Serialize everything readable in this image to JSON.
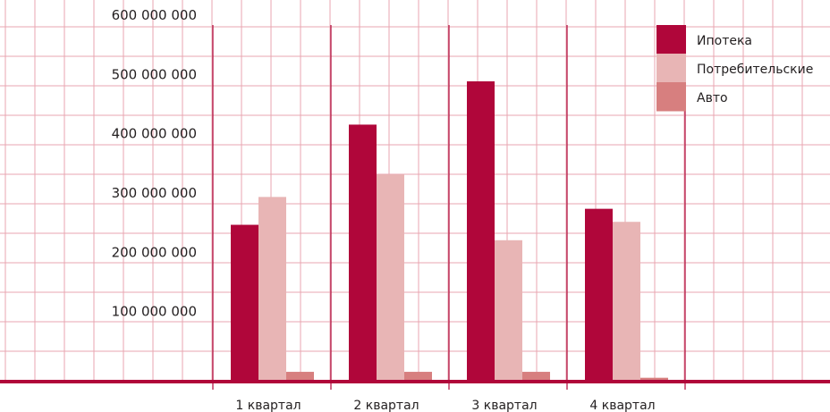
{
  "chart_data": {
    "type": "bar",
    "categories": [
      "1 квартал",
      "2 квартал",
      "3 квартал",
      "4 квартал"
    ],
    "series": [
      {
        "name": "Ипотека",
        "color": "#b0063a",
        "values": [
          263000000,
          432000000,
          505000000,
          290000000
        ]
      },
      {
        "name": "Потребительские",
        "color": "#e8b5b5",
        "values": [
          310000000,
          348000000,
          237000000,
          268000000
        ]
      },
      {
        "name": "Авто",
        "color": "#d77f7f",
        "values": [
          15000000,
          15000000,
          15000000,
          5000000
        ]
      }
    ],
    "y_ticks": [
      "600 000 000",
      "500 000 000",
      "400 000 000",
      "300 000 000",
      "200 000 000",
      "100 000 000"
    ],
    "ylim": [
      0,
      600000000
    ],
    "grid": true,
    "legend": "top-right",
    "colors": {
      "grid": "#e8a6b0",
      "separator": "#b0063a",
      "baseline": "#b0063a"
    }
  }
}
